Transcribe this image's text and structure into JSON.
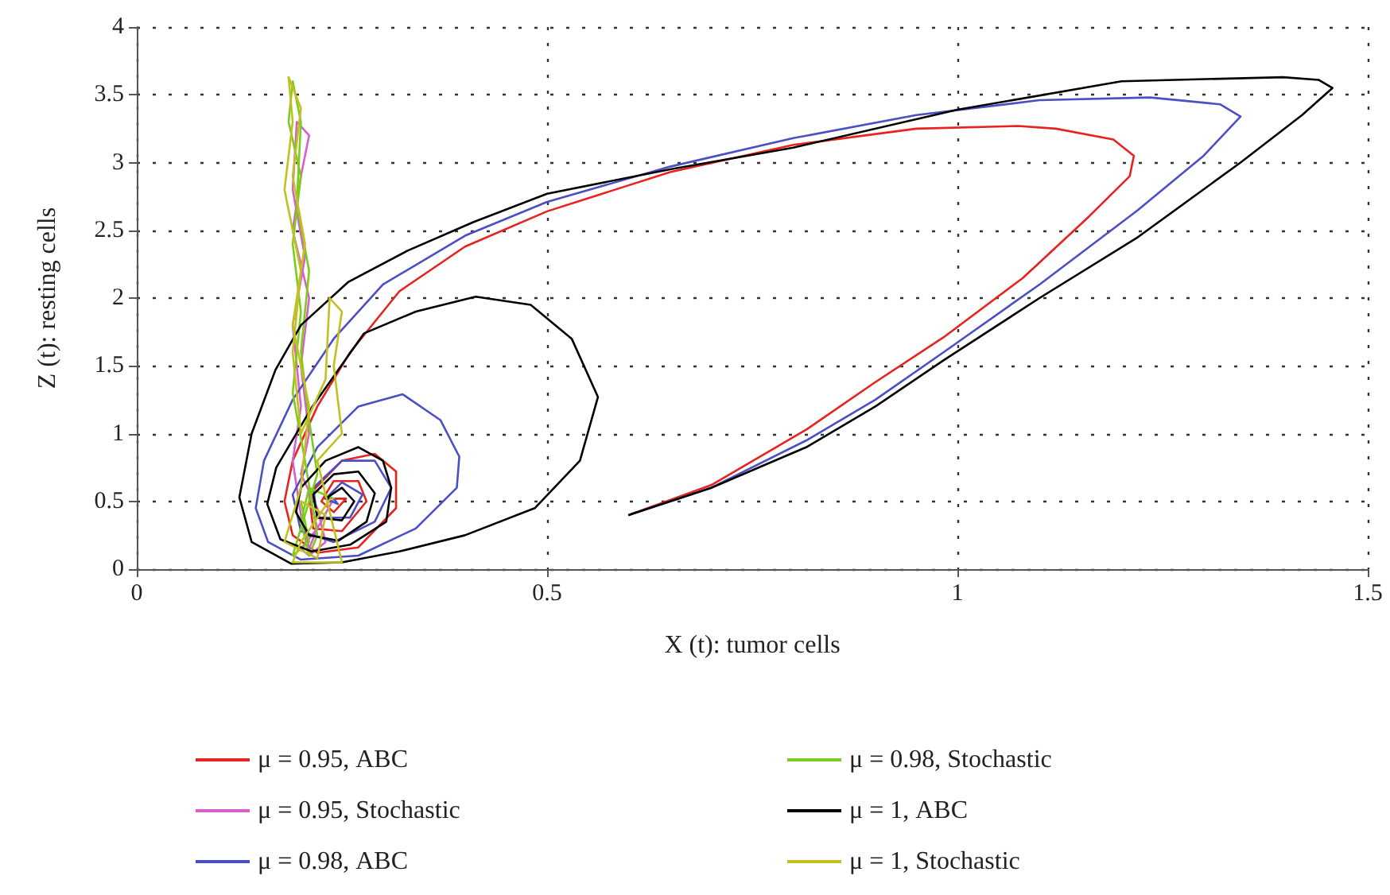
{
  "chart_data": {
    "type": "line",
    "xlabel": "X (t): tumor cells",
    "ylabel": "Z (t): resting cells",
    "xlim": [
      0,
      1.5
    ],
    "xticks": [
      0,
      0.5,
      1,
      1.5
    ],
    "ylim": [
      0,
      4
    ],
    "yticks": [
      0,
      0.5,
      1,
      1.5,
      2,
      2.5,
      3,
      3.5,
      4
    ],
    "grid": true,
    "legend": "bottom",
    "marker": "none",
    "line_style": "solid",
    "series": [
      {
        "name": "μ = 0.95, ABC",
        "color": "#e8231f",
        "x": [
          0.6,
          0.7,
          0.816,
          0.9,
          0.983,
          1.08,
          1.16,
          1.21,
          1.215,
          1.19,
          1.12,
          1.074,
          0.95,
          0.8,
          0.65,
          0.5,
          0.4,
          0.32,
          0.26,
          0.22,
          0.19,
          0.18,
          0.19,
          0.22,
          0.27,
          0.316,
          0.316,
          0.29,
          0.25,
          0.21,
          0.215,
          0.25,
          0.28,
          0.27,
          0.24,
          0.225,
          0.24,
          0.255,
          0.24
        ],
        "values": [
          0.4,
          0.62,
          1.03,
          1.38,
          1.71,
          2.15,
          2.6,
          2.9,
          3.05,
          3.17,
          3.25,
          3.27,
          3.25,
          3.13,
          2.93,
          2.64,
          2.38,
          2.05,
          1.6,
          1.2,
          0.8,
          0.5,
          0.25,
          0.12,
          0.16,
          0.45,
          0.72,
          0.85,
          0.8,
          0.55,
          0.3,
          0.28,
          0.5,
          0.65,
          0.65,
          0.5,
          0.42,
          0.52,
          0.52
        ]
      },
      {
        "name": "μ = 0.95, Stochastic",
        "color": "#d65fcf",
        "x": [
          0.24,
          0.22,
          0.2,
          0.21,
          0.23,
          0.22,
          0.2,
          0.21,
          0.2,
          0.21,
          0.19,
          0.2,
          0.21,
          0.195,
          0.19,
          0.205,
          0.19,
          0.2,
          0.19,
          0.2,
          0.21,
          0.22,
          0.21
        ],
        "values": [
          0.52,
          0.3,
          0.15,
          0.1,
          0.2,
          0.45,
          0.7,
          1.0,
          1.5,
          2.0,
          2.5,
          2.9,
          3.2,
          3.3,
          2.8,
          2.3,
          1.8,
          1.2,
          0.8,
          0.4,
          0.15,
          0.3,
          0.55
        ]
      },
      {
        "name": "μ = 0.98, ABC",
        "color": "#4b4fc4",
        "x": [
          0.6,
          0.7,
          0.816,
          0.9,
          0.983,
          1.1,
          1.22,
          1.3,
          1.345,
          1.32,
          1.235,
          1.1,
          0.95,
          0.8,
          0.65,
          0.5,
          0.4,
          0.3,
          0.24,
          0.19,
          0.155,
          0.145,
          0.16,
          0.2,
          0.27,
          0.34,
          0.39,
          0.393,
          0.37,
          0.324,
          0.27,
          0.22,
          0.19,
          0.2,
          0.24,
          0.29,
          0.31,
          0.29,
          0.25,
          0.215,
          0.22,
          0.26,
          0.275,
          0.25,
          0.23,
          0.245,
          0.24
        ],
        "values": [
          0.4,
          0.6,
          0.95,
          1.25,
          1.6,
          2.1,
          2.65,
          3.05,
          3.34,
          3.43,
          3.48,
          3.46,
          3.35,
          3.18,
          2.97,
          2.71,
          2.46,
          2.1,
          1.7,
          1.25,
          0.8,
          0.45,
          0.2,
          0.07,
          0.1,
          0.3,
          0.6,
          0.83,
          1.1,
          1.29,
          1.2,
          0.9,
          0.55,
          0.28,
          0.2,
          0.35,
          0.6,
          0.8,
          0.8,
          0.6,
          0.38,
          0.38,
          0.55,
          0.64,
          0.52,
          0.48,
          0.52
        ]
      },
      {
        "name": "μ = 0.98, Stochastic",
        "color": "#7ccc1c",
        "x": [
          0.24,
          0.21,
          0.2,
          0.21,
          0.22,
          0.205,
          0.19,
          0.2,
          0.19,
          0.2,
          0.185,
          0.19,
          0.2,
          0.195,
          0.21,
          0.2,
          0.21,
          0.22,
          0.2,
          0.19,
          0.21,
          0.2
        ],
        "values": [
          0.52,
          0.6,
          0.35,
          0.1,
          0.25,
          0.8,
          1.3,
          1.9,
          2.4,
          2.9,
          3.3,
          3.6,
          3.3,
          2.7,
          2.2,
          1.6,
          1.1,
          0.7,
          0.3,
          0.1,
          0.2,
          0.5
        ]
      },
      {
        "name": "μ = 1, ABC",
        "color": "#000000",
        "x": [
          0.6,
          0.7,
          0.816,
          0.9,
          0.983,
          1.1,
          1.22,
          1.345,
          1.42,
          1.457,
          1.44,
          1.397,
          1.2,
          1.0,
          0.8,
          0.65,
          0.5,
          0.41,
          0.33,
          0.258,
          0.2,
          0.169,
          0.14,
          0.125,
          0.14,
          0.188,
          0.25,
          0.32,
          0.4,
          0.485,
          0.54,
          0.562,
          0.53,
          0.48,
          0.413,
          0.34,
          0.277,
          0.213,
          0.17,
          0.159,
          0.175,
          0.213,
          0.26,
          0.304,
          0.31,
          0.3,
          0.27,
          0.23,
          0.2,
          0.194,
          0.21,
          0.246,
          0.28,
          0.29,
          0.27,
          0.24,
          0.215,
          0.22,
          0.25,
          0.265,
          0.25,
          0.23,
          0.236
        ],
        "values": [
          0.4,
          0.6,
          0.9,
          1.2,
          1.54,
          2.0,
          2.45,
          3.0,
          3.35,
          3.55,
          3.61,
          3.63,
          3.6,
          3.39,
          3.11,
          2.95,
          2.77,
          2.56,
          2.35,
          2.12,
          1.8,
          1.47,
          1.0,
          0.53,
          0.2,
          0.04,
          0.05,
          0.13,
          0.25,
          0.45,
          0.8,
          1.27,
          1.7,
          1.95,
          2.01,
          1.9,
          1.74,
          1.19,
          0.75,
          0.48,
          0.22,
          0.13,
          0.18,
          0.35,
          0.6,
          0.8,
          0.9,
          0.8,
          0.6,
          0.42,
          0.25,
          0.21,
          0.35,
          0.56,
          0.72,
          0.7,
          0.55,
          0.38,
          0.36,
          0.5,
          0.6,
          0.52,
          0.52
        ]
      },
      {
        "name": "μ = 1, Stochastic",
        "color": "#c2c020",
        "x": [
          0.236,
          0.2,
          0.19,
          0.25,
          0.24,
          0.22,
          0.25,
          0.24,
          0.25,
          0.235,
          0.23,
          0.2,
          0.19,
          0.2,
          0.18,
          0.19,
          0.185,
          0.2,
          0.19,
          0.205,
          0.19,
          0.21,
          0.2,
          0.18,
          0.22,
          0.23,
          0.2
        ],
        "values": [
          0.52,
          0.2,
          0.05,
          0.05,
          0.3,
          0.8,
          1.0,
          1.5,
          1.9,
          2.0,
          1.4,
          1.0,
          1.6,
          2.2,
          2.8,
          3.3,
          3.63,
          3.4,
          2.9,
          2.4,
          1.8,
          1.2,
          0.6,
          0.2,
          0.08,
          0.4,
          0.5
        ]
      }
    ]
  }
}
